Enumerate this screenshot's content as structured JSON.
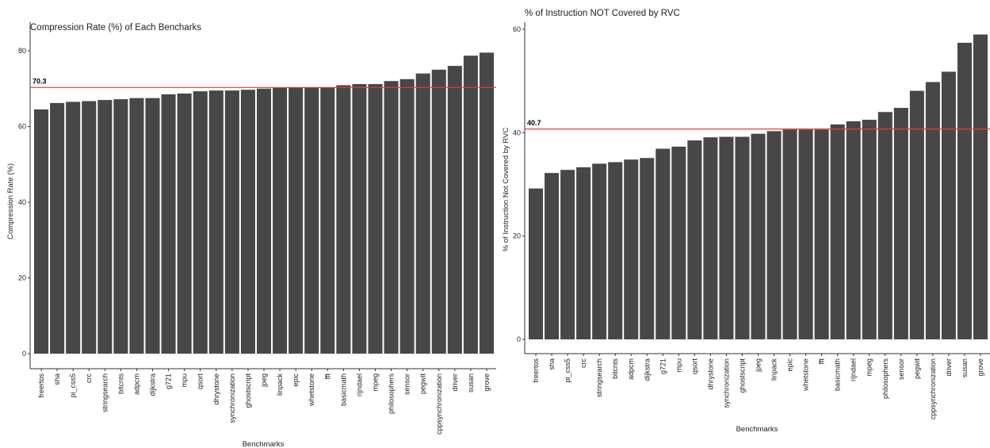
{
  "chart_data": [
    {
      "type": "bar",
      "title": "Compression Rate (%) of Each Bencharks",
      "xlabel": "Benchmarks",
      "ylabel": "Compression Rate (%)",
      "ylim": [
        0,
        82
      ],
      "yticks": [
        0,
        20,
        40,
        60,
        80
      ],
      "grid": false,
      "bar_color": "#474747",
      "reference_line": {
        "value": 70.3,
        "label": "70.3",
        "color": "#e8383b"
      },
      "categories": [
        "freertos",
        "sha",
        "pi_css5",
        "crc",
        "stringsearch",
        "bitcnts",
        "adpcm",
        "dijkstra",
        "g721",
        "mpu",
        "qsort",
        "dhrystone",
        "synchronization",
        "ghostscript",
        "jpeg",
        "linpack",
        "epic",
        "whetstone",
        "fft",
        "basicmath",
        "rijndael",
        "mpeg",
        "philosophers",
        "sensor",
        "pegwit",
        "cppsynchronization",
        "driver",
        "susan",
        "grove"
      ],
      "values": [
        64.5,
        66.2,
        66.5,
        66.7,
        67.0,
        67.2,
        67.5,
        67.5,
        68.5,
        68.7,
        69.3,
        69.5,
        69.5,
        69.7,
        70.0,
        70.2,
        70.3,
        70.3,
        70.3,
        70.9,
        71.2,
        71.2,
        72.0,
        72.5,
        74.0,
        75.0,
        76.0,
        78.7,
        79.5
      ]
    },
    {
      "type": "bar",
      "title": "% of Instruction NOT Covered by RVC",
      "xlabel": "Benchmarks",
      "ylabel": "% of Instruction Not Covered by RVC",
      "ylim": [
        0,
        61
      ],
      "yticks": [
        0,
        20,
        40,
        60
      ],
      "grid": false,
      "bar_color": "#474747",
      "reference_line": {
        "value": 40.7,
        "label": "40.7",
        "color": "#e8383b"
      },
      "categories": [
        "freertos",
        "sha",
        "pi_css5",
        "crc",
        "stringsearch",
        "bitcnts",
        "adpcm",
        "dijkstra",
        "g721",
        "mpu",
        "qsort",
        "dhrystone",
        "synchronization",
        "ghostscript",
        "jpeg",
        "linpack",
        "epic",
        "whetstone",
        "fft",
        "basicmath",
        "rijndael",
        "mpeg",
        "philosophers",
        "sensor",
        "pegwit",
        "cppsynchronization",
        "driver",
        "susan",
        "grove"
      ],
      "values": [
        29.2,
        32.2,
        32.8,
        33.3,
        34.0,
        34.3,
        34.8,
        35.1,
        36.9,
        37.3,
        38.5,
        39.1,
        39.2,
        39.2,
        39.8,
        40.3,
        40.6,
        40.6,
        40.6,
        41.6,
        42.2,
        42.5,
        44.0,
        44.8,
        48.1,
        49.8,
        51.8,
        57.4,
        59.0
      ]
    }
  ]
}
